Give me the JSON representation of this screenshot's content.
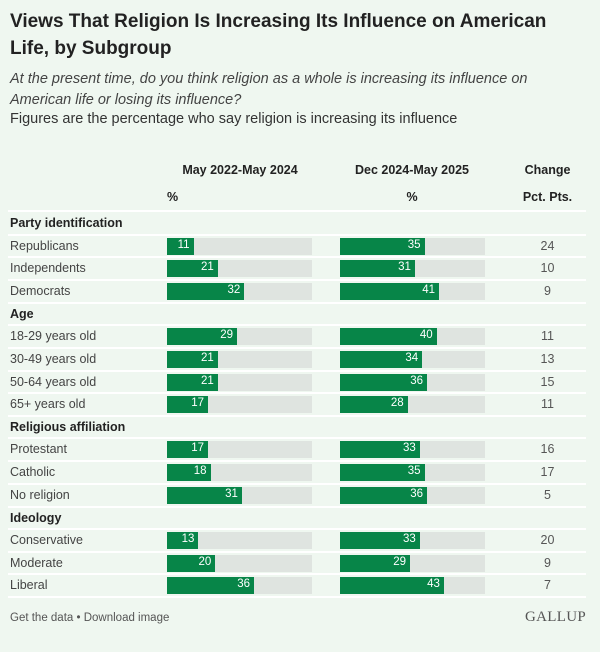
{
  "chart_data": {
    "type": "bar",
    "title": "Views That Religion Is Increasing Its Influence on American Life, by Subgroup",
    "subtitle": "At the present time, do you think religion as a whole is increasing its influence on American life or losing its influence?",
    "note": "Figures are the percentage who say religion is increasing its influence",
    "columns": [
      {
        "label": "May 2022-May 2024",
        "unit": "%"
      },
      {
        "label": "Dec 2024-May 2025",
        "unit": "%"
      },
      {
        "label": "Change",
        "unit": "Pct. Pts."
      }
    ],
    "xlim": [
      0,
      60
    ],
    "groups": [
      {
        "name": "Party identification",
        "rows": [
          {
            "label": "Republicans",
            "v1": 11,
            "v2": 35,
            "change": 24
          },
          {
            "label": "Independents",
            "v1": 21,
            "v2": 31,
            "change": 10
          },
          {
            "label": "Democrats",
            "v1": 32,
            "v2": 41,
            "change": 9
          }
        ]
      },
      {
        "name": "Age",
        "rows": [
          {
            "label": "18-29 years old",
            "v1": 29,
            "v2": 40,
            "change": 11
          },
          {
            "label": "30-49 years old",
            "v1": 21,
            "v2": 34,
            "change": 13
          },
          {
            "label": "50-64 years old",
            "v1": 21,
            "v2": 36,
            "change": 15
          },
          {
            "label": "65+ years old",
            "v1": 17,
            "v2": 28,
            "change": 11
          }
        ]
      },
      {
        "name": "Religious affiliation",
        "rows": [
          {
            "label": "Protestant",
            "v1": 17,
            "v2": 33,
            "change": 16
          },
          {
            "label": "Catholic",
            "v1": 18,
            "v2": 35,
            "change": 17
          },
          {
            "label": "No religion",
            "v1": 31,
            "v2": 36,
            "change": 5
          }
        ]
      },
      {
        "name": "Ideology",
        "rows": [
          {
            "label": "Conservative",
            "v1": 13,
            "v2": 33,
            "change": 20
          },
          {
            "label": "Moderate",
            "v1": 20,
            "v2": 29,
            "change": 9
          },
          {
            "label": "Liberal",
            "v1": 36,
            "v2": 43,
            "change": 7
          }
        ]
      }
    ],
    "colors": {
      "bar": "#078548",
      "track": "#dfe4e0",
      "background": "#eff7f0"
    }
  },
  "footer": {
    "links": "Get the data • Download image",
    "logo": "GALLUP"
  }
}
